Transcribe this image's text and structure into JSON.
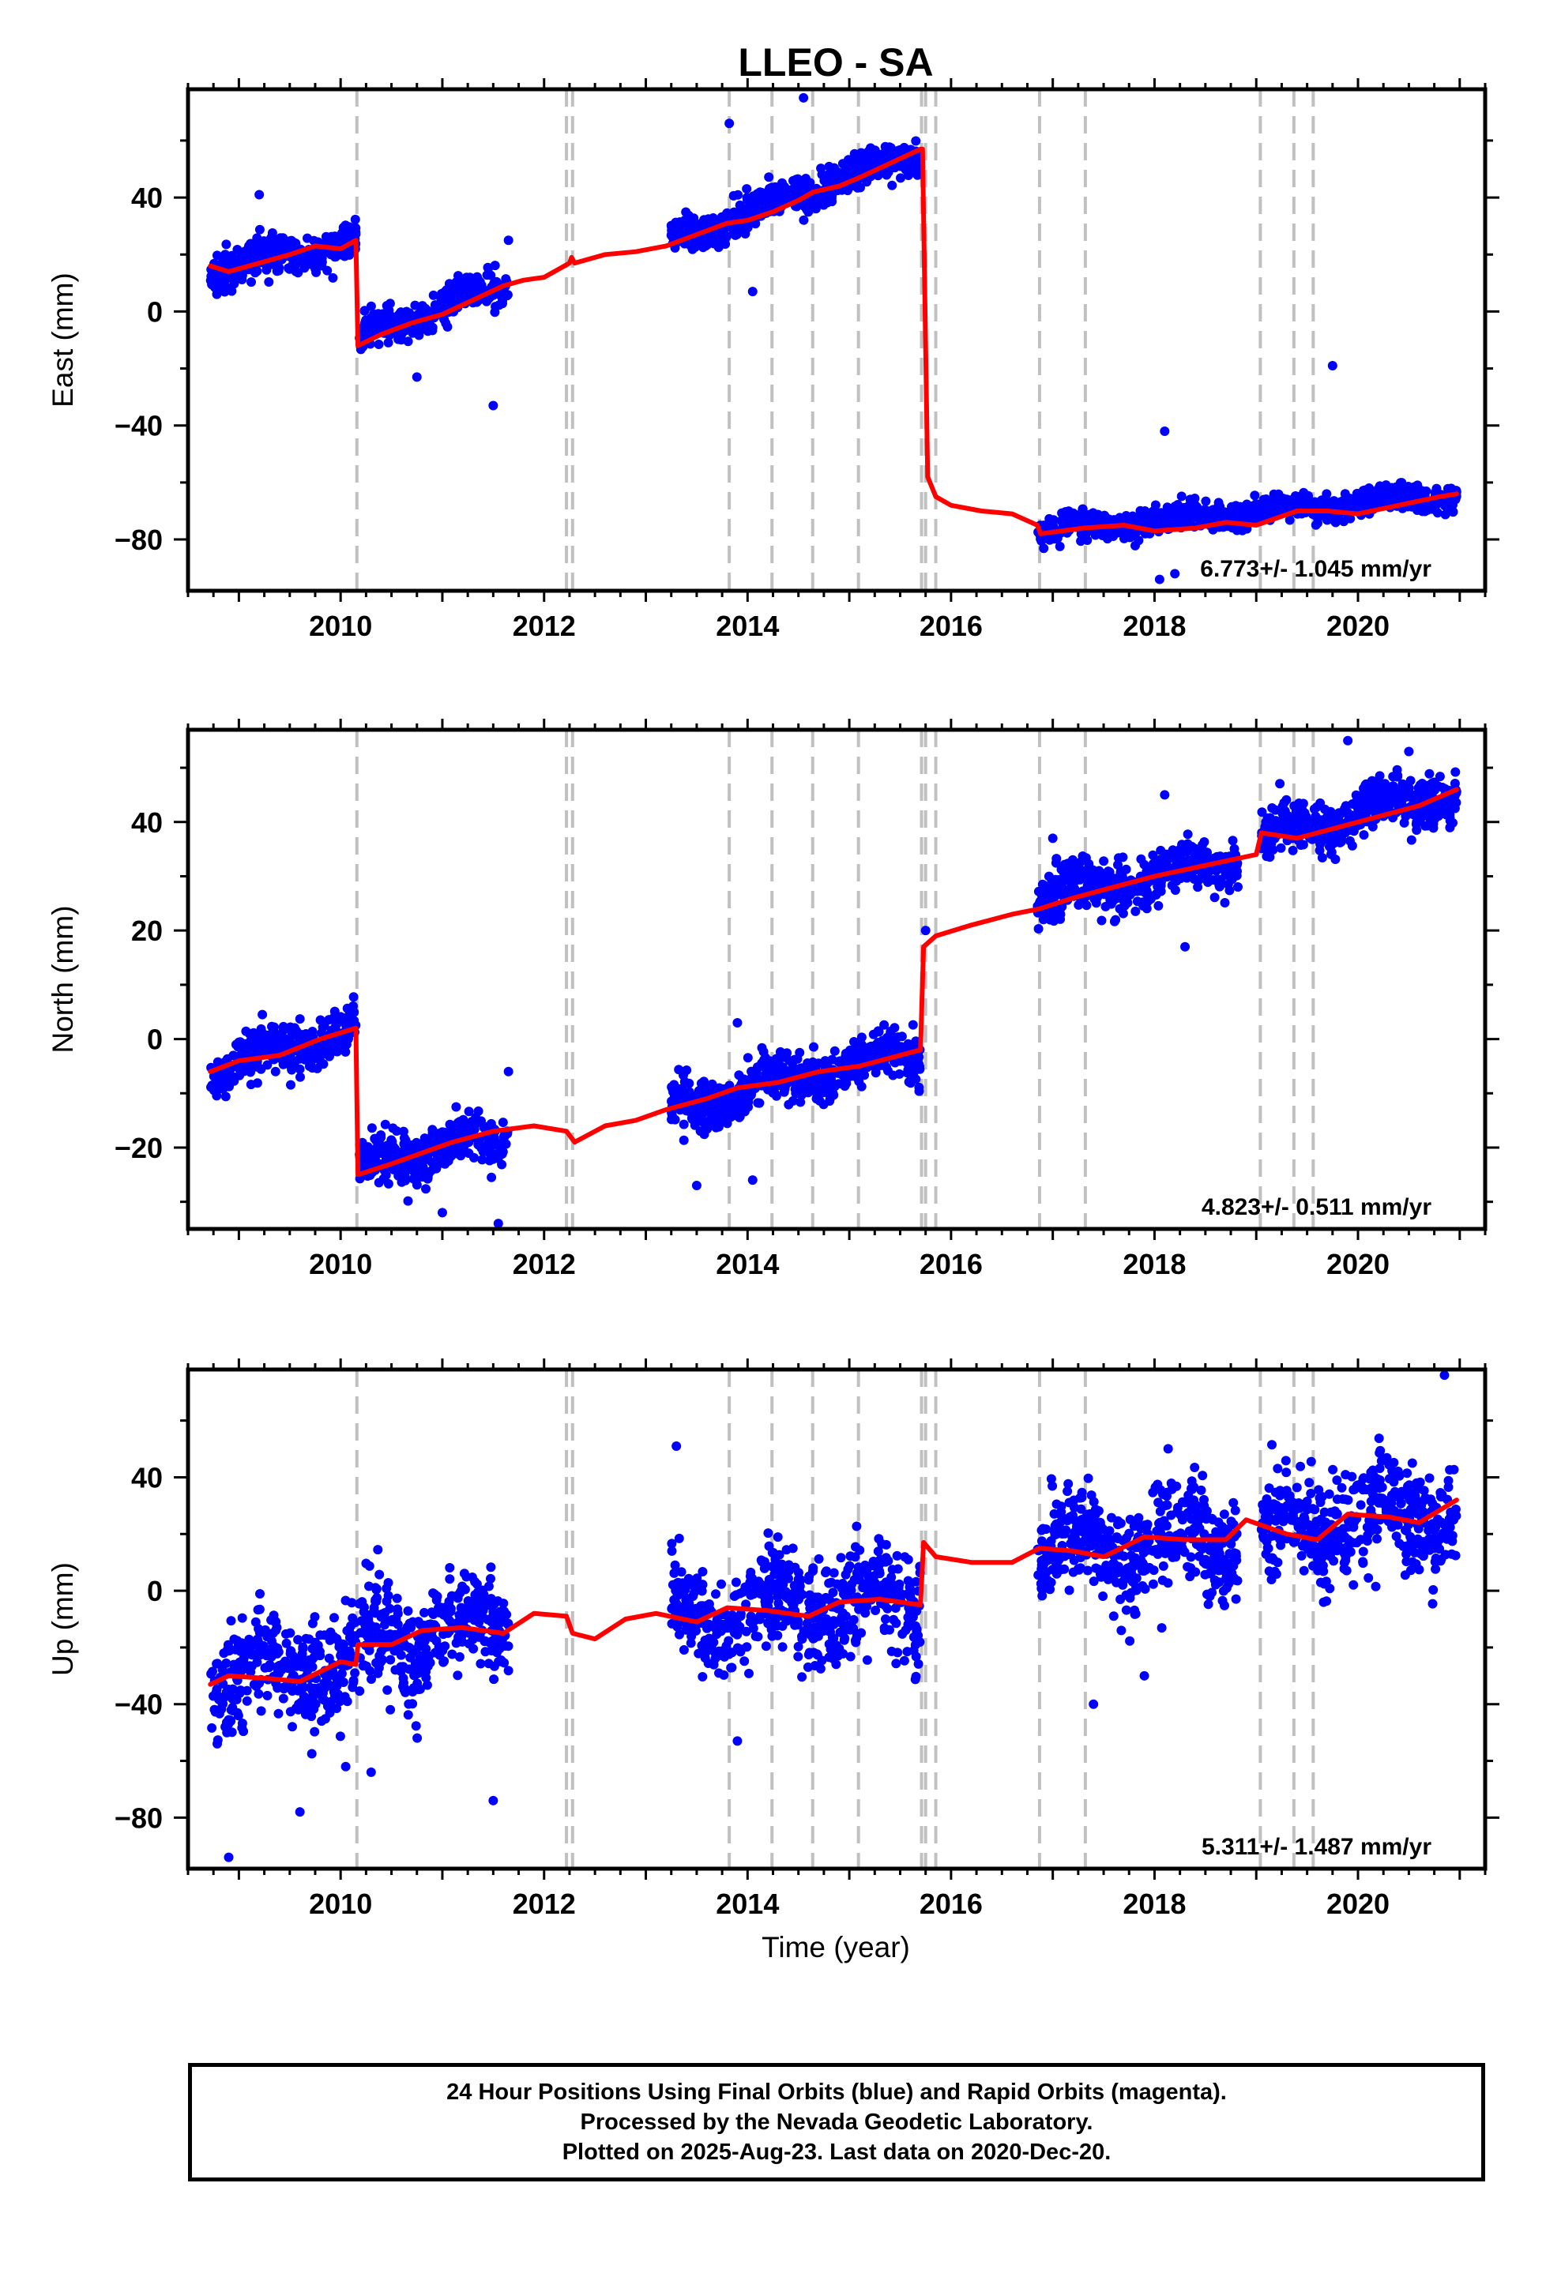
{
  "figure": {
    "title": "LLEO - SA",
    "xlabel": "Time (year)"
  },
  "footer": {
    "line1": "24 Hour Positions Using Final Orbits (blue) and Rapid Orbits (magenta).",
    "line2": "Processed by the Nevada Geodetic Laboratory.",
    "line3": "Plotted on 2025-Aug-23. Last data on 2020-Dec-20."
  },
  "colors": {
    "final_orbits": "#0000ff",
    "rapid_orbits": "#ff00ff",
    "model": "#ff0000",
    "event_lines": "#c0c0c0"
  },
  "chart_data": [
    {
      "type": "scatter",
      "name": "east",
      "ylabel": "East (mm)",
      "annotation": "6.773+/- 1.045 mm/yr",
      "xlim": [
        2008.5,
        2021.25
      ],
      "ylim": [
        -98,
        78
      ],
      "xticks": [
        2010,
        2012,
        2014,
        2016,
        2018,
        2020
      ],
      "yticks": [
        -80,
        -40,
        0,
        40
      ],
      "event_lines": [
        2010.16,
        2012.22,
        2012.28,
        2013.82,
        2014.24,
        2014.64,
        2015.09,
        2015.71,
        2015.75,
        2015.85,
        2016.87,
        2017.32,
        2019.04,
        2019.37,
        2019.56
      ],
      "model": [
        [
          2008.72,
          16
        ],
        [
          2008.9,
          14
        ],
        [
          2009.2,
          17
        ],
        [
          2009.5,
          20
        ],
        [
          2009.75,
          23
        ],
        [
          2010.0,
          22
        ],
        [
          2010.15,
          25
        ],
        [
          2010.17,
          -12
        ],
        [
          2010.4,
          -8
        ],
        [
          2010.7,
          -4
        ],
        [
          2011.0,
          -1
        ],
        [
          2011.3,
          4
        ],
        [
          2011.6,
          9
        ],
        [
          2011.8,
          11
        ],
        [
          2012.0,
          12
        ],
        [
          2012.25,
          17
        ],
        [
          2012.27,
          19
        ],
        [
          2012.3,
          17
        ],
        [
          2012.6,
          20
        ],
        [
          2012.9,
          21
        ],
        [
          2013.2,
          23
        ],
        [
          2013.5,
          27
        ],
        [
          2013.8,
          31
        ],
        [
          2014.0,
          32
        ],
        [
          2014.25,
          35
        ],
        [
          2014.5,
          39
        ],
        [
          2014.65,
          42
        ],
        [
          2014.9,
          44
        ],
        [
          2015.1,
          47
        ],
        [
          2015.4,
          52
        ],
        [
          2015.7,
          57
        ],
        [
          2015.72,
          57
        ],
        [
          2015.77,
          -58
        ],
        [
          2015.85,
          -65
        ],
        [
          2016.0,
          -68
        ],
        [
          2016.3,
          -70
        ],
        [
          2016.6,
          -71
        ],
        [
          2016.85,
          -75
        ],
        [
          2016.88,
          -78
        ],
        [
          2017.3,
          -76
        ],
        [
          2017.7,
          -75
        ],
        [
          2018.0,
          -77
        ],
        [
          2018.4,
          -76
        ],
        [
          2018.7,
          -74
        ],
        [
          2019.0,
          -75
        ],
        [
          2019.4,
          -70
        ],
        [
          2019.7,
          -70
        ],
        [
          2020.0,
          -71
        ],
        [
          2020.4,
          -68
        ],
        [
          2020.8,
          -65
        ],
        [
          2020.97,
          -64
        ]
      ],
      "scatter_segments": [
        {
          "range": [
            2008.72,
            2010.15
          ],
          "start": 14,
          "end": 25,
          "spread": 4
        },
        {
          "range": [
            2010.18,
            2011.65
          ],
          "start": -9,
          "end": 10,
          "spread": 4
        },
        {
          "range": [
            2013.25,
            2015.7
          ],
          "start": 25,
          "end": 56,
          "spread": 4
        },
        {
          "range": [
            2016.85,
            2020.97
          ],
          "start": -77,
          "end": -64,
          "spread": 3
        }
      ],
      "outliers": [
        [
          2009.2,
          41
        ],
        [
          2010.75,
          -23
        ],
        [
          2011.5,
          -33
        ],
        [
          2011.65,
          25
        ],
        [
          2013.82,
          66
        ],
        [
          2014.05,
          7
        ],
        [
          2014.55,
          75
        ],
        [
          2018.1,
          -42
        ],
        [
          2018.05,
          -94
        ],
        [
          2018.2,
          -92
        ],
        [
          2019.75,
          -19
        ]
      ]
    },
    {
      "type": "scatter",
      "name": "north",
      "ylabel": "North (mm)",
      "annotation": "4.823+/- 0.511 mm/yr",
      "xlim": [
        2008.5,
        2021.25
      ],
      "ylim": [
        -35,
        57
      ],
      "xticks": [
        2010,
        2012,
        2014,
        2016,
        2018,
        2020
      ],
      "yticks": [
        -20,
        0,
        20,
        40
      ],
      "event_lines": [
        2010.16,
        2012.22,
        2012.28,
        2013.82,
        2014.24,
        2014.64,
        2015.09,
        2015.71,
        2015.75,
        2015.85,
        2016.87,
        2017.32,
        2019.04,
        2019.37,
        2019.56
      ],
      "model": [
        [
          2008.72,
          -6
        ],
        [
          2009.0,
          -4
        ],
        [
          2009.4,
          -3
        ],
        [
          2009.8,
          0
        ],
        [
          2010.15,
          2
        ],
        [
          2010.17,
          -25
        ],
        [
          2010.5,
          -23
        ],
        [
          2010.8,
          -21
        ],
        [
          2011.1,
          -19
        ],
        [
          2011.5,
          -17
        ],
        [
          2011.9,
          -16
        ],
        [
          2012.22,
          -17
        ],
        [
          2012.3,
          -19
        ],
        [
          2012.6,
          -16
        ],
        [
          2012.9,
          -15
        ],
        [
          2013.2,
          -13
        ],
        [
          2013.6,
          -11
        ],
        [
          2013.9,
          -9
        ],
        [
          2014.3,
          -8
        ],
        [
          2014.7,
          -6
        ],
        [
          2015.1,
          -5
        ],
        [
          2015.5,
          -3
        ],
        [
          2015.7,
          -2
        ],
        [
          2015.73,
          17
        ],
        [
          2015.85,
          19
        ],
        [
          2016.2,
          21
        ],
        [
          2016.6,
          23
        ],
        [
          2016.87,
          24
        ],
        [
          2017.2,
          26
        ],
        [
          2017.6,
          28
        ],
        [
          2018.0,
          30
        ],
        [
          2018.5,
          32
        ],
        [
          2019.0,
          34
        ],
        [
          2019.05,
          38
        ],
        [
          2019.4,
          37
        ],
        [
          2019.8,
          39
        ],
        [
          2020.2,
          41
        ],
        [
          2020.6,
          43
        ],
        [
          2020.97,
          46
        ]
      ],
      "scatter_segments": [
        {
          "range": [
            2008.72,
            2010.15
          ],
          "start": -6,
          "end": 2,
          "spread": 3
        },
        {
          "range": [
            2010.18,
            2011.65
          ],
          "start": -23,
          "end": -18,
          "spread": 3
        },
        {
          "range": [
            2013.25,
            2015.7
          ],
          "start": -13,
          "end": -2,
          "spread": 3
        },
        {
          "range": [
            2016.85,
            2018.82
          ],
          "start": 26,
          "end": 33,
          "spread": 3
        },
        {
          "range": [
            2019.05,
            2020.97
          ],
          "start": 37,
          "end": 46,
          "spread": 3
        }
      ],
      "outliers": [
        [
          2011.0,
          -32
        ],
        [
          2011.55,
          -34
        ],
        [
          2011.65,
          -6
        ],
        [
          2013.5,
          -27
        ],
        [
          2013.9,
          3
        ],
        [
          2014.05,
          -26
        ],
        [
          2015.75,
          20
        ],
        [
          2017.0,
          37
        ],
        [
          2018.1,
          45
        ],
        [
          2018.3,
          17
        ],
        [
          2019.9,
          55
        ],
        [
          2020.5,
          53
        ]
      ]
    },
    {
      "type": "scatter",
      "name": "up",
      "ylabel": "Up (mm)",
      "annotation": "5.311+/- 1.487 mm/yr",
      "xlim": [
        2008.5,
        2021.25
      ],
      "ylim": [
        -98,
        78
      ],
      "xticks": [
        2010,
        2012,
        2014,
        2016,
        2018,
        2020
      ],
      "yticks": [
        -80,
        -40,
        0,
        40
      ],
      "event_lines": [
        2010.16,
        2012.22,
        2012.28,
        2013.82,
        2014.24,
        2014.64,
        2015.09,
        2015.71,
        2015.75,
        2015.85,
        2016.87,
        2017.32,
        2019.04,
        2019.37,
        2019.56
      ],
      "model": [
        [
          2008.72,
          -33
        ],
        [
          2008.9,
          -30
        ],
        [
          2009.3,
          -31
        ],
        [
          2009.6,
          -32
        ],
        [
          2010.0,
          -25
        ],
        [
          2010.15,
          -26
        ],
        [
          2010.17,
          -19
        ],
        [
          2010.5,
          -19
        ],
        [
          2010.8,
          -14
        ],
        [
          2011.2,
          -13
        ],
        [
          2011.6,
          -15
        ],
        [
          2011.9,
          -8
        ],
        [
          2012.22,
          -9
        ],
        [
          2012.28,
          -15
        ],
        [
          2012.5,
          -17
        ],
        [
          2012.8,
          -10
        ],
        [
          2013.1,
          -8
        ],
        [
          2013.5,
          -11
        ],
        [
          2013.8,
          -6
        ],
        [
          2014.2,
          -7
        ],
        [
          2014.6,
          -9
        ],
        [
          2014.9,
          -4
        ],
        [
          2015.3,
          -3
        ],
        [
          2015.7,
          -5
        ],
        [
          2015.73,
          17
        ],
        [
          2015.85,
          12
        ],
        [
          2016.2,
          10
        ],
        [
          2016.6,
          10
        ],
        [
          2016.87,
          15
        ],
        [
          2017.2,
          14
        ],
        [
          2017.5,
          12
        ],
        [
          2017.9,
          19
        ],
        [
          2018.3,
          18
        ],
        [
          2018.7,
          18
        ],
        [
          2018.9,
          25
        ],
        [
          2019.3,
          20
        ],
        [
          2019.6,
          18
        ],
        [
          2019.9,
          27
        ],
        [
          2020.3,
          26
        ],
        [
          2020.6,
          24
        ],
        [
          2020.97,
          32
        ]
      ],
      "scatter_segments": [
        {
          "range": [
            2008.72,
            2010.15
          ],
          "start": -30,
          "end": -25,
          "spread": 12
        },
        {
          "range": [
            2010.18,
            2011.65
          ],
          "start": -18,
          "end": -12,
          "spread": 12
        },
        {
          "range": [
            2013.25,
            2015.7
          ],
          "start": -8,
          "end": -4,
          "spread": 12
        },
        {
          "range": [
            2016.85,
            2018.82
          ],
          "start": 14,
          "end": 18,
          "spread": 12
        },
        {
          "range": [
            2019.05,
            2020.97
          ],
          "start": 20,
          "end": 30,
          "spread": 12
        }
      ],
      "outliers": [
        [
          2008.9,
          -94
        ],
        [
          2009.6,
          -78
        ],
        [
          2010.05,
          -62
        ],
        [
          2010.3,
          -64
        ],
        [
          2011.5,
          -74
        ],
        [
          2013.3,
          51
        ],
        [
          2013.9,
          -53
        ],
        [
          2017.4,
          -40
        ],
        [
          2017.9,
          -30
        ],
        [
          2020.85,
          76
        ]
      ]
    }
  ]
}
